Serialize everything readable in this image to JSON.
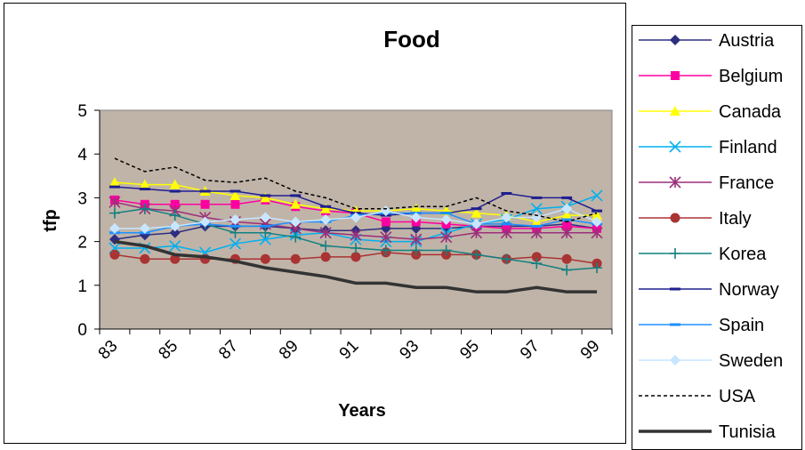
{
  "chart_data": {
    "type": "line",
    "title": "Food",
    "xlabel": "Years",
    "ylabel": "tfp",
    "ylim": [
      0,
      5
    ],
    "yticks": [
      "0",
      "1",
      "2",
      "3",
      "4",
      "5"
    ],
    "xtick_labels": [
      "83",
      "85",
      "87",
      "89",
      "91",
      "93",
      "95",
      "97",
      "99"
    ],
    "x": [
      83,
      84,
      85,
      86,
      87,
      88,
      89,
      90,
      91,
      92,
      93,
      94,
      95,
      96,
      97,
      98,
      99
    ],
    "plot_background": "#c0b4a8",
    "legend_position": "right",
    "series": [
      {
        "name": "Austria",
        "color": "#2e2e80",
        "marker": "diamond",
        "values": [
          2.05,
          2.15,
          2.2,
          2.35,
          2.35,
          2.35,
          2.3,
          2.25,
          2.25,
          2.3,
          2.3,
          2.3,
          2.35,
          2.35,
          2.35,
          2.4,
          2.3
        ]
      },
      {
        "name": "Belgium",
        "color": "#ff00a0",
        "marker": "square",
        "values": [
          2.95,
          2.85,
          2.85,
          2.85,
          2.85,
          2.95,
          2.8,
          2.7,
          2.65,
          2.45,
          2.45,
          2.4,
          2.35,
          2.3,
          2.3,
          2.35,
          2.3
        ]
      },
      {
        "name": "Canada",
        "color": "#ffff00",
        "marker": "triangle",
        "values": [
          3.35,
          3.3,
          3.3,
          3.15,
          3.05,
          3.0,
          2.85,
          2.75,
          2.7,
          2.7,
          2.75,
          2.7,
          2.65,
          2.6,
          2.45,
          2.6,
          2.6
        ]
      },
      {
        "name": "Finland",
        "color": "#00b0f0",
        "marker": "x",
        "values": [
          1.85,
          1.85,
          1.9,
          1.75,
          1.95,
          2.05,
          2.15,
          2.2,
          2.05,
          2.0,
          2.0,
          2.2,
          2.4,
          2.5,
          2.75,
          2.8,
          3.05
        ]
      },
      {
        "name": "France",
        "color": "#9b2f7a",
        "marker": "asterisk",
        "values": [
          2.9,
          2.75,
          2.7,
          2.55,
          2.45,
          2.4,
          2.3,
          2.2,
          2.15,
          2.1,
          2.05,
          2.1,
          2.2,
          2.2,
          2.2,
          2.2,
          2.2
        ]
      },
      {
        "name": "Italy",
        "color": "#aa3333",
        "marker": "circle",
        "values": [
          1.7,
          1.6,
          1.6,
          1.6,
          1.6,
          1.6,
          1.6,
          1.65,
          1.65,
          1.75,
          1.7,
          1.7,
          1.7,
          1.6,
          1.65,
          1.6,
          1.5
        ]
      },
      {
        "name": "Korea",
        "color": "#148080",
        "marker": "plus",
        "values": [
          2.65,
          2.75,
          2.6,
          2.4,
          2.2,
          2.2,
          2.1,
          1.9,
          1.85,
          1.8,
          1.8,
          1.8,
          1.7,
          1.6,
          1.5,
          1.35,
          1.4
        ]
      },
      {
        "name": "Norway",
        "color": "#1f1f8f",
        "marker": "dash",
        "values": [
          3.25,
          3.2,
          3.15,
          3.15,
          3.15,
          3.05,
          3.05,
          2.8,
          2.65,
          2.6,
          2.65,
          2.65,
          2.75,
          3.1,
          3.0,
          3.0,
          2.7
        ]
      },
      {
        "name": "Spain",
        "color": "#1e90ff",
        "marker": "dash",
        "values": [
          2.2,
          2.2,
          2.35,
          2.4,
          2.35,
          2.35,
          2.45,
          2.45,
          2.6,
          2.65,
          2.65,
          2.65,
          2.4,
          2.4,
          2.35,
          2.5,
          2.4
        ]
      },
      {
        "name": "Sweden",
        "color": "#c8e6ff",
        "marker": "diamond",
        "values": [
          2.3,
          2.3,
          2.35,
          2.45,
          2.5,
          2.55,
          2.45,
          2.5,
          2.55,
          2.7,
          2.55,
          2.5,
          2.4,
          2.55,
          2.55,
          2.75,
          2.45
        ]
      },
      {
        "name": "USA",
        "color": "#000000",
        "marker": "none",
        "dashed": true,
        "values": [
          3.9,
          3.6,
          3.7,
          3.4,
          3.35,
          3.45,
          3.15,
          3.0,
          2.75,
          2.75,
          2.8,
          2.8,
          3.0,
          2.7,
          2.6,
          2.45,
          2.65
        ]
      },
      {
        "name": "Tunisia",
        "color": "#333333",
        "marker": "none",
        "thick": true,
        "values": [
          2.0,
          1.9,
          1.7,
          1.65,
          1.55,
          1.4,
          1.3,
          1.2,
          1.05,
          1.05,
          0.95,
          0.95,
          0.85,
          0.85,
          0.95,
          0.85,
          0.85
        ]
      }
    ]
  }
}
